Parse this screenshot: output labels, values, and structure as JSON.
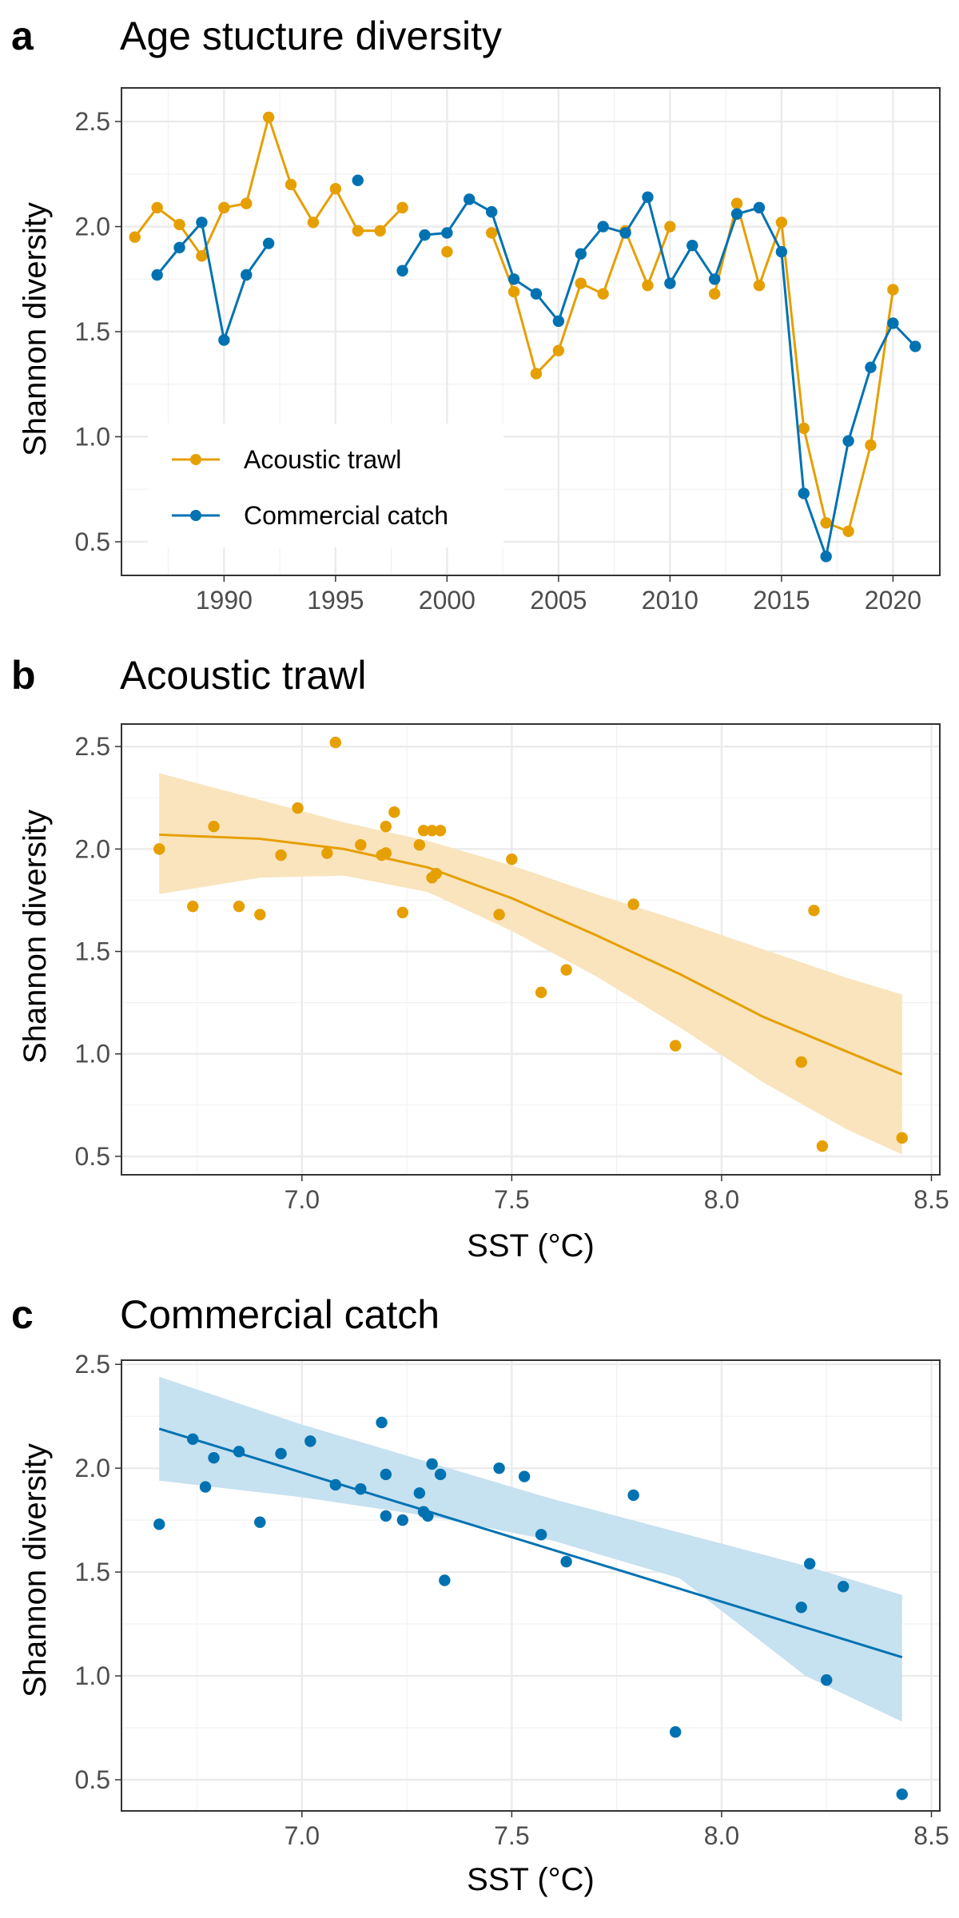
{
  "chart_data": [
    {
      "panel": "a",
      "type": "line",
      "title": "Age stucture diversity",
      "xlabel": "",
      "ylabel": "Shannon diversity",
      "xlim": [
        1985.4,
        2022.1
      ],
      "ylim": [
        0.34,
        2.66
      ],
      "xticks": [
        1990,
        1995,
        2000,
        2005,
        2010,
        2015,
        2020
      ],
      "yticks": [
        0.5,
        1.0,
        1.5,
        2.0,
        2.5
      ],
      "grid": true,
      "legend": "bottom-left",
      "series": [
        {
          "name": "Acoustic trawl",
          "color": "#E69F00",
          "segments": [
            [
              [
                1986,
                1.95
              ],
              [
                1987,
                2.09
              ],
              [
                1988,
                2.01
              ],
              [
                1989,
                1.86
              ],
              [
                1990,
                2.09
              ],
              [
                1991,
                2.11
              ],
              [
                1992,
                2.52
              ],
              [
                1993,
                2.2
              ],
              [
                1994,
                2.02
              ],
              [
                1995,
                2.18
              ],
              [
                1996,
                1.98
              ],
              [
                1997,
                1.98
              ],
              [
                1998,
                2.09
              ]
            ],
            [
              [
                2000,
                1.88
              ]
            ],
            [
              [
                2002,
                1.97
              ],
              [
                2003,
                1.69
              ],
              [
                2004,
                1.3
              ],
              [
                2005,
                1.41
              ],
              [
                2006,
                1.73
              ],
              [
                2007,
                1.68
              ],
              [
                2008,
                1.98
              ],
              [
                2009,
                1.72
              ],
              [
                2010,
                2.0
              ]
            ],
            [
              [
                2012,
                1.68
              ],
              [
                2013,
                2.11
              ],
              [
                2014,
                1.72
              ],
              [
                2015,
                2.02
              ],
              [
                2016,
                1.04
              ],
              [
                2017,
                0.59
              ],
              [
                2018,
                0.55
              ],
              [
                2019,
                0.96
              ],
              [
                2020,
                1.7
              ]
            ]
          ]
        },
        {
          "name": "Commercial catch",
          "color": "#0072B2",
          "segments": [
            [
              [
                1987,
                1.77
              ],
              [
                1988,
                1.9
              ],
              [
                1989,
                2.02
              ],
              [
                1990,
                1.46
              ],
              [
                1991,
                1.77
              ],
              [
                1992,
                1.92
              ]
            ],
            [
              [
                1996,
                2.22
              ]
            ],
            [
              [
                1998,
                1.79
              ],
              [
                1999,
                1.96
              ],
              [
                2000,
                1.97
              ],
              [
                2001,
                2.13
              ],
              [
                2002,
                2.07
              ],
              [
                2003,
                1.75
              ],
              [
                2004,
                1.68
              ],
              [
                2005,
                1.55
              ],
              [
                2006,
                1.87
              ],
              [
                2007,
                2.0
              ],
              [
                2008,
                1.97
              ],
              [
                2009,
                2.14
              ],
              [
                2010,
                1.73
              ],
              [
                2011,
                1.91
              ],
              [
                2012,
                1.75
              ],
              [
                2013,
                2.06
              ],
              [
                2014,
                2.09
              ],
              [
                2015,
                1.88
              ],
              [
                2016,
                0.73
              ],
              [
                2017,
                0.43
              ],
              [
                2018,
                0.98
              ],
              [
                2019,
                1.33
              ],
              [
                2020,
                1.54
              ],
              [
                2021,
                1.43
              ]
            ]
          ]
        }
      ]
    },
    {
      "panel": "b",
      "type": "scatter",
      "title": "Acoustic trawl",
      "xlabel": "SST (°C)",
      "ylabel": "Shannon diversity",
      "xlim": [
        6.57,
        8.52
      ],
      "ylim": [
        0.41,
        2.61
      ],
      "xticks": [
        7.0,
        7.5,
        8.0,
        8.5
      ],
      "yticks": [
        0.5,
        1.0,
        1.5,
        2.0,
        2.5
      ],
      "grid": true,
      "color": "#E69F00",
      "band_color": "#F9E4BD",
      "points": [
        [
          6.66,
          2.0
        ],
        [
          6.74,
          1.72
        ],
        [
          6.79,
          2.11
        ],
        [
          6.85,
          1.72
        ],
        [
          6.9,
          1.68
        ],
        [
          6.95,
          1.97
        ],
        [
          6.99,
          2.2
        ],
        [
          7.06,
          1.98
        ],
        [
          7.08,
          2.52
        ],
        [
          7.14,
          2.02
        ],
        [
          7.19,
          1.97
        ],
        [
          7.2,
          1.98
        ],
        [
          7.2,
          2.11
        ],
        [
          7.22,
          2.18
        ],
        [
          7.24,
          1.69
        ],
        [
          7.28,
          2.02
        ],
        [
          7.29,
          2.09
        ],
        [
          7.31,
          2.09
        ],
        [
          7.31,
          1.86
        ],
        [
          7.32,
          1.88
        ],
        [
          7.33,
          2.09
        ],
        [
          7.47,
          1.68
        ],
        [
          7.5,
          1.95
        ],
        [
          7.57,
          1.3
        ],
        [
          7.63,
          1.41
        ],
        [
          7.79,
          1.73
        ],
        [
          7.89,
          1.04
        ],
        [
          8.19,
          0.96
        ],
        [
          8.22,
          1.7
        ],
        [
          8.24,
          0.55
        ],
        [
          8.43,
          0.59
        ]
      ],
      "fit": [
        [
          6.66,
          2.07
        ],
        [
          6.9,
          2.05
        ],
        [
          7.1,
          2.0
        ],
        [
          7.3,
          1.91
        ],
        [
          7.5,
          1.76
        ],
        [
          7.7,
          1.58
        ],
        [
          7.9,
          1.39
        ],
        [
          8.1,
          1.18
        ],
        [
          8.3,
          1.01
        ],
        [
          8.43,
          0.9
        ]
      ],
      "ci_upper": [
        [
          6.66,
          2.37
        ],
        [
          6.9,
          2.24
        ],
        [
          7.1,
          2.13
        ],
        [
          7.3,
          2.04
        ],
        [
          7.5,
          1.92
        ],
        [
          7.7,
          1.78
        ],
        [
          7.9,
          1.65
        ],
        [
          8.1,
          1.51
        ],
        [
          8.3,
          1.37
        ],
        [
          8.43,
          1.29
        ]
      ],
      "ci_lower": [
        [
          6.66,
          1.78
        ],
        [
          6.9,
          1.86
        ],
        [
          7.1,
          1.87
        ],
        [
          7.3,
          1.79
        ],
        [
          7.5,
          1.6
        ],
        [
          7.7,
          1.38
        ],
        [
          7.9,
          1.13
        ],
        [
          8.1,
          0.86
        ],
        [
          8.3,
          0.63
        ],
        [
          8.43,
          0.51
        ]
      ]
    },
    {
      "panel": "c",
      "type": "scatter",
      "title": "Commercial catch",
      "xlabel": "SST (°C)",
      "ylabel": "Shannon diversity",
      "xlim": [
        6.57,
        8.52
      ],
      "ylim": [
        0.35,
        2.52
      ],
      "xticks": [
        7.0,
        7.5,
        8.0,
        8.5
      ],
      "yticks": [
        0.5,
        1.0,
        1.5,
        2.0,
        2.5
      ],
      "grid": true,
      "color": "#0072B2",
      "band_color": "#C6E1F0",
      "points": [
        [
          6.66,
          1.73
        ],
        [
          6.74,
          2.14
        ],
        [
          6.77,
          1.91
        ],
        [
          6.79,
          2.05
        ],
        [
          6.85,
          2.08
        ],
        [
          6.9,
          1.74
        ],
        [
          6.95,
          2.07
        ],
        [
          7.02,
          2.13
        ],
        [
          7.08,
          1.92
        ],
        [
          7.14,
          1.9
        ],
        [
          7.19,
          2.22
        ],
        [
          7.2,
          1.77
        ],
        [
          7.2,
          1.97
        ],
        [
          7.24,
          1.75
        ],
        [
          7.28,
          1.88
        ],
        [
          7.29,
          1.79
        ],
        [
          7.3,
          1.77
        ],
        [
          7.31,
          2.02
        ],
        [
          7.33,
          1.97
        ],
        [
          7.34,
          1.46
        ],
        [
          7.47,
          2.0
        ],
        [
          7.53,
          1.96
        ],
        [
          7.57,
          1.68
        ],
        [
          7.63,
          1.55
        ],
        [
          7.79,
          1.87
        ],
        [
          7.89,
          0.73
        ],
        [
          8.19,
          1.33
        ],
        [
          8.21,
          1.54
        ],
        [
          8.25,
          0.98
        ],
        [
          8.29,
          1.43
        ],
        [
          8.43,
          0.43
        ]
      ],
      "fit": [
        [
          6.66,
          2.19
        ],
        [
          8.43,
          1.09
        ]
      ],
      "ci_upper": [
        [
          6.66,
          2.44
        ],
        [
          7.0,
          2.21
        ],
        [
          7.3,
          2.03
        ],
        [
          7.6,
          1.85
        ],
        [
          7.9,
          1.69
        ],
        [
          8.2,
          1.53
        ],
        [
          8.43,
          1.39
        ]
      ],
      "ci_lower": [
        [
          6.66,
          1.94
        ],
        [
          7.0,
          1.86
        ],
        [
          7.3,
          1.77
        ],
        [
          7.6,
          1.65
        ],
        [
          7.9,
          1.47
        ],
        [
          8.2,
          1.0
        ],
        [
          8.43,
          0.78
        ]
      ]
    }
  ]
}
